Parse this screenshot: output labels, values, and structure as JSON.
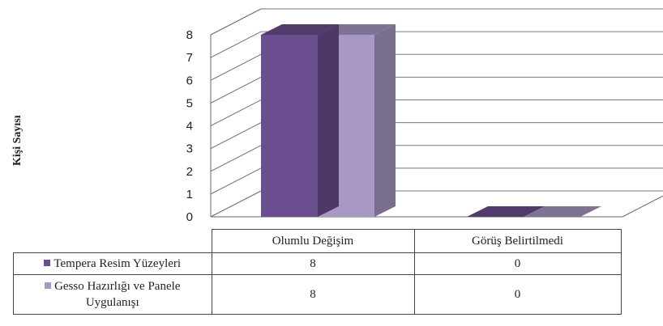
{
  "chart_data": {
    "type": "bar",
    "ylabel": "Kişi Sayısı",
    "xlabel": "",
    "title": "",
    "ylim": [
      0,
      8
    ],
    "yticks": [
      "0",
      "1",
      "2",
      "3",
      "4",
      "5",
      "6",
      "7",
      "8"
    ],
    "categories": [
      "Olumlu Değişim",
      "Görüş Belirtilmedi"
    ],
    "series": [
      {
        "name": "Tempera Resim Yüzeyleri",
        "values": [
          8,
          0
        ],
        "color": "#6b4e8f"
      },
      {
        "name": "Gesso  Hazırlığı ve Panele Uygulanışı",
        "values": [
          8,
          0
        ],
        "color": "#a899c4"
      }
    ],
    "grid": true,
    "legend": "data-table",
    "table": {
      "rows": [
        {
          "label": "Tempera Resim Yüzeyleri",
          "cells": [
            "8",
            "0"
          ]
        },
        {
          "label_line1": "Gesso  Hazırlığı ve Panele",
          "label_line2": "Uygulanışı",
          "cells": [
            "8",
            "0"
          ]
        }
      ]
    }
  }
}
